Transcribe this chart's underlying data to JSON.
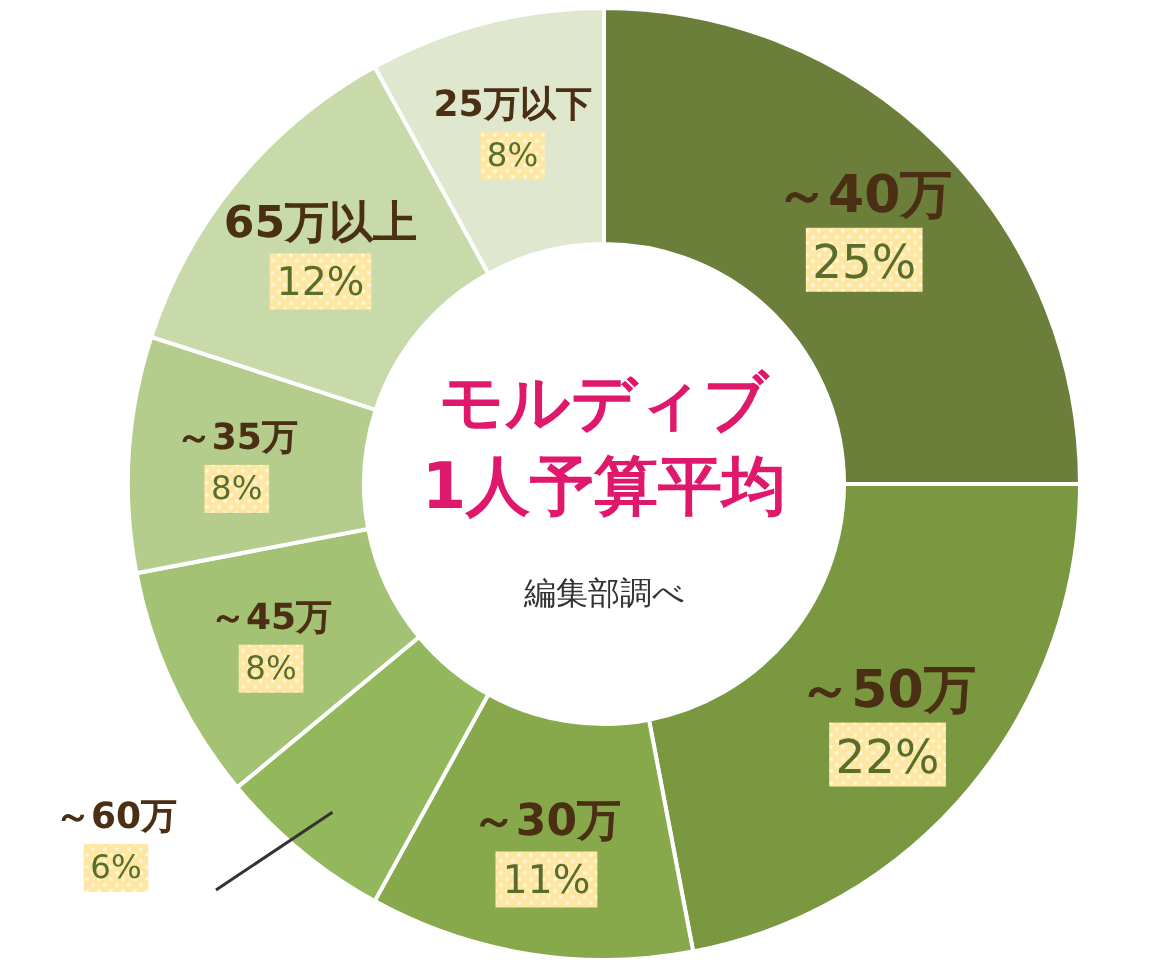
{
  "chart_data": {
    "type": "donut",
    "title": "モルディブ\n1人予算平均",
    "categories": [
      "～40万",
      "～50万",
      "～30万",
      "～60万",
      "～45万",
      "～35万",
      "65万以上",
      "25万以下"
    ],
    "values": [
      25,
      22,
      11,
      6,
      8,
      8,
      12,
      8
    ],
    "value_labels": [
      "25%",
      "22%",
      "11%",
      "6%",
      "8%",
      "8%",
      "12%",
      "8%"
    ],
    "colors": [
      "#6b7f3a",
      "#7a983f",
      "#87a94b",
      "#93b75b",
      "#a4c273",
      "#b4cd8c",
      "#c8daa9",
      "#dfe8cf"
    ],
    "annotations": [
      "編集部調べ"
    ]
  }
}
